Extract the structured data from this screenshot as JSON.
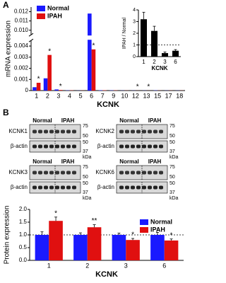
{
  "panels": [
    "A",
    "B"
  ],
  "blots": {
    "groups": [
      "Normal",
      "IPAH"
    ],
    "proteins": [
      "KCNK1",
      "KCNK2",
      "KCNK3",
      "KCNK6"
    ],
    "loading": "β-actin",
    "markers_target": [
      "75",
      "50"
    ],
    "markers_actin": [
      "50",
      "37"
    ],
    "unit": "kDa"
  },
  "chart_data": [
    {
      "type": "bar",
      "xlabel": "KCNK",
      "ylabel": "mRNA expression",
      "categories": [
        "1",
        "2",
        "3",
        "4",
        "5",
        "6",
        "7",
        "9",
        "10",
        "12",
        "13",
        "15",
        "17",
        "18"
      ],
      "series": [
        {
          "name": "Normal",
          "color": "#1a1aff",
          "values": [
            0.0003,
            0.0011,
            0.0001,
            2e-05,
            1e-05,
            0.0118,
            3e-05,
            2e-05,
            1e-05,
            1e-05,
            1e-05,
            2e-05,
            1e-05,
            1e-05
          ]
        },
        {
          "name": "IPAH",
          "color": "#e01010",
          "values": [
            0.0007,
            0.0032,
            5e-05,
            2e-05,
            1e-05,
            0.0037,
            3e-05,
            2e-05,
            1e-05,
            5e-06,
            5e-06,
            1e-05,
            1e-05,
            1e-05
          ]
        }
      ],
      "ylim": [
        0,
        0.0125
      ],
      "ybreak": [
        0.0045,
        0.0095
      ],
      "yticks": [
        0,
        0.001,
        0.002,
        0.003,
        0.004,
        {
          "value": 0.01,
          "label": "0.010"
        },
        0.011,
        0.012
      ],
      "legend": "upper left",
      "annotations": [
        {
          "text": "*",
          "x": "1",
          "series": "IPAH"
        },
        {
          "text": "*",
          "x": "2",
          "series": "IPAH"
        },
        {
          "text": "*",
          "x": "3",
          "series": "IPAH"
        },
        {
          "text": "*",
          "x": "6",
          "series": "IPAH"
        },
        {
          "text": "*",
          "x": "12",
          "series": "IPAH"
        },
        {
          "text": "*",
          "x": "13",
          "series": "IPAH"
        }
      ]
    },
    {
      "type": "bar",
      "xlabel": "KCNK",
      "ylabel": "IPAH / Normal",
      "categories": [
        "1",
        "2",
        "3",
        "6"
      ],
      "series": [
        {
          "name": "IPAH / Normal",
          "color": "#000000",
          "values": [
            3.2,
            2.2,
            0.3,
            0.5
          ],
          "errors": [
            0.6,
            0.4,
            0.1,
            0.1
          ]
        }
      ],
      "ylim": [
        0,
        4
      ],
      "yticks": [
        0,
        1,
        2,
        3,
        4
      ],
      "reference_line": 1
    },
    {
      "type": "bar",
      "xlabel": "KCNK",
      "ylabel": "Protein expression",
      "categories": [
        "1",
        "2",
        "3",
        "6"
      ],
      "series": [
        {
          "name": "Normal",
          "color": "#1a1aff",
          "values": [
            1.0,
            1.0,
            1.0,
            1.0
          ],
          "errors": [
            0.12,
            0.08,
            0.07,
            0.1
          ]
        },
        {
          "name": "IPAH",
          "color": "#e01010",
          "values": [
            1.55,
            1.3,
            0.8,
            0.78
          ],
          "errors": [
            0.15,
            0.1,
            0.06,
            0.06
          ]
        }
      ],
      "ylim": [
        0,
        2
      ],
      "yticks": [
        {
          "value": 0,
          "label": "0.0"
        },
        0.5,
        {
          "value": 1,
          "label": "1.0"
        },
        1.5,
        {
          "value": 2,
          "label": "2.0"
        }
      ],
      "reference_line": 1,
      "legend": "upper right",
      "annotations": [
        {
          "text": "*",
          "x": "1",
          "series": "IPAH"
        },
        {
          "text": "**",
          "x": "2",
          "series": "IPAH"
        },
        {
          "text": "*",
          "x": "3",
          "series": "IPAH"
        },
        {
          "text": "*",
          "x": "6",
          "series": "IPAH"
        }
      ]
    }
  ]
}
